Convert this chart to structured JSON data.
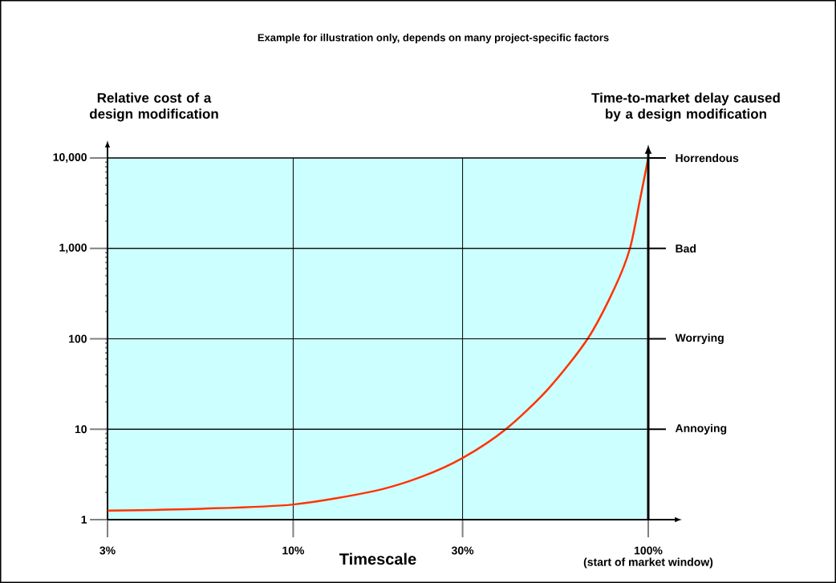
{
  "chart_data": {
    "type": "line",
    "title": "Example for illustration only, depends on many project-specific factors",
    "ylabel": "Relative cost of a design modification",
    "y2label": "Time-to-market delay caused by a design modification",
    "xlabel": "Timescale",
    "annotations": [
      "(start of market window)"
    ],
    "ref_lines": [
      {
        "axis": "y",
        "value": 10,
        "label": "Annoying"
      },
      {
        "axis": "y",
        "value": 100,
        "label": "Worrying"
      },
      {
        "axis": "y",
        "value": 1000,
        "label": "Bad"
      },
      {
        "axis": "y",
        "value": 10000,
        "label": "Horrendous"
      }
    ],
    "log": "xy",
    "grid": true,
    "marker": "none",
    "line_style": "solid",
    "xlim": [
      3,
      100
    ],
    "xticks": [
      {
        "value": 3,
        "label": "3%"
      },
      {
        "value": 10,
        "label": "10%"
      },
      {
        "value": 30,
        "label": "30%"
      },
      {
        "value": 100,
        "label": "100%"
      }
    ],
    "ylim": [
      1,
      10000
    ],
    "yticks": [
      1,
      10,
      100,
      {
        "value": 1000,
        "label": "1,000"
      },
      {
        "value": 10000,
        "label": "10,000"
      }
    ],
    "series": [
      {
        "color": "#ff3300",
        "x": [
          3,
          5.5,
          10,
          17,
          23.1,
          30,
          39.7,
          52.3,
          67.5,
          80.4,
          88.8,
          94.9,
          100
        ],
        "values": [
          1.26,
          1.32,
          1.47,
          2.08,
          3.0,
          4.8,
          10,
          28,
          100,
          365,
          1000,
          3550,
          10000
        ]
      }
    ]
  }
}
